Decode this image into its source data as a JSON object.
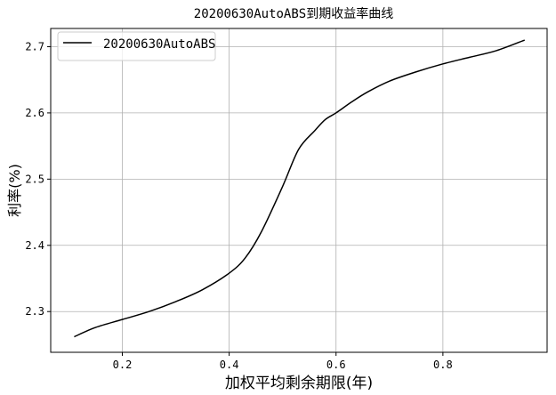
{
  "chart_data": {
    "type": "line",
    "title": "20200630AutoABS到期收益率曲线",
    "xlabel": "加权平均剩余期限(年)",
    "ylabel": "利率(%)",
    "xlim": [
      0.066,
      0.995
    ],
    "ylim": [
      2.2385,
      2.7275
    ],
    "xticks": [
      0.2,
      0.4,
      0.6,
      0.8
    ],
    "xtick_labels": [
      "0.2",
      "0.4",
      "0.6",
      "0.8"
    ],
    "yticks": [
      2.3,
      2.4,
      2.5,
      2.6,
      2.7
    ],
    "ytick_labels": [
      "2.3",
      "2.4",
      "2.5",
      "2.6",
      "2.7"
    ],
    "grid": true,
    "legend": {
      "position": "top-left",
      "entries": [
        "20200630AutoABS"
      ]
    },
    "series": [
      {
        "name": "20200630AutoABS",
        "color": "#000000",
        "x": [
          0.11,
          0.15,
          0.2,
          0.25,
          0.3,
          0.35,
          0.4,
          0.43,
          0.46,
          0.5,
          0.53,
          0.56,
          0.58,
          0.6,
          0.63,
          0.66,
          0.7,
          0.75,
          0.8,
          0.85,
          0.9,
          0.953
        ],
        "y": [
          2.262,
          2.276,
          2.288,
          2.3,
          2.315,
          2.333,
          2.358,
          2.381,
          2.42,
          2.489,
          2.545,
          2.573,
          2.59,
          2.6,
          2.617,
          2.632,
          2.648,
          2.662,
          2.674,
          2.684,
          2.694,
          2.71
        ]
      }
    ]
  }
}
